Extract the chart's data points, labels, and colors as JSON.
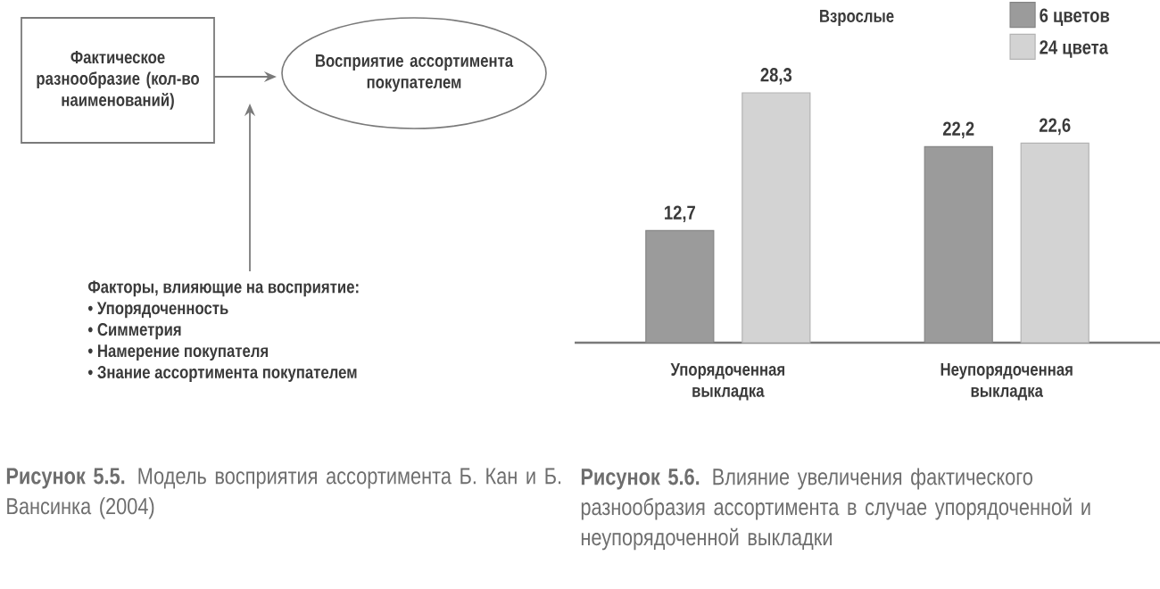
{
  "chart_data": [
    {
      "type": "other",
      "annotations": [
        "Фактическое разнообразие (кол-во наименований)",
        "Восприятие ассортимента покупателем",
        "Факторы, влияющие на восприятие:",
        "• Упорядоченность",
        "• Симметрия",
        "• Намерение покупателя",
        "• Знание ассортимента покупателем",
        "**Рисунок 5.5.** Модель восприятия ассортимента Б. Кан и Б. Вансинка (2004)"
      ]
    },
    {
      "type": "bar",
      "title": "Взрослые",
      "categories": [
        "Упорядоченная выкладка",
        "Неупорядоченная выкладка"
      ],
      "legend": "top right",
      "series": [
        {
          "name": "6 цветов",
          "color": "#9b9b9b",
          "values": [
            12.7,
            22.2
          ],
          "value_labels": [
            "12,7",
            "22,2"
          ]
        },
        {
          "name": "24 цвета",
          "color": "#d3d3d3",
          "values": [
            28.3,
            22.6
          ],
          "value_labels": [
            "28,3",
            "22,6"
          ]
        }
      ],
      "annotations": [
        "**Рисунок 5.6.** Влияние увеличения фактического разнообразия ассортимента в случае упорядоченной и неупорядоченной выкладки"
      ]
    }
  ]
}
